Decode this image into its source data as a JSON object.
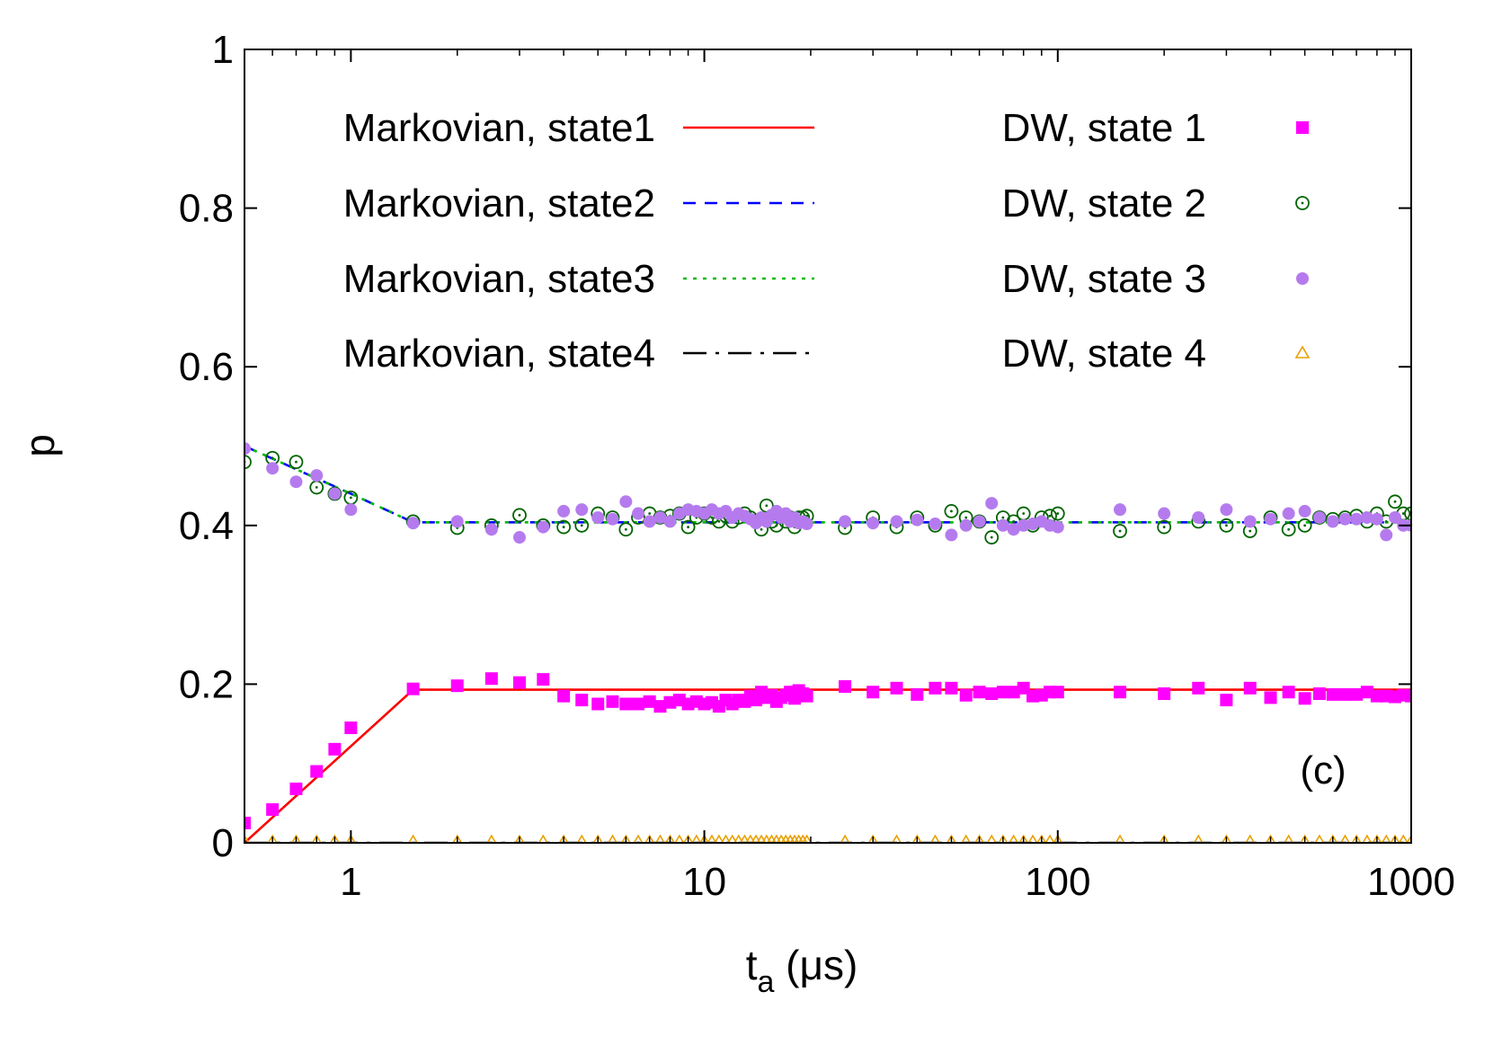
{
  "chart_data": {
    "type": "scatter",
    "panel_label": "(c)",
    "xlabel": {
      "main": "t",
      "sub": "a",
      "unit": " (μs)"
    },
    "ylabel": "p",
    "xscale": "log",
    "xlim": [
      0.5,
      1000
    ],
    "ylim": [
      0,
      1
    ],
    "x_ticks": [
      {
        "value": 1,
        "label": "1"
      },
      {
        "value": 10,
        "label": "10"
      },
      {
        "value": 100,
        "label": "100"
      },
      {
        "value": 1000,
        "label": "1000"
      }
    ],
    "y_ticks": [
      {
        "value": 0,
        "label": "0"
      },
      {
        "value": 0.2,
        "label": "0.2"
      },
      {
        "value": 0.4,
        "label": "0.4"
      },
      {
        "value": 0.6,
        "label": "0.6"
      },
      {
        "value": 0.8,
        "label": "0.8"
      },
      {
        "value": 1,
        "label": "1"
      }
    ],
    "grid": false,
    "legend_position": "top",
    "lines": [
      {
        "name": "Markovian, state1",
        "color": "#ff0000",
        "dash": "solid",
        "x": [
          0.5,
          1.5,
          1000
        ],
        "y": [
          0.0,
          0.193,
          0.193
        ]
      },
      {
        "name": "Markovian, state2",
        "color": "#0000ff",
        "dash": "dashed",
        "x": [
          0.5,
          1.0,
          1.5,
          1000
        ],
        "y": [
          0.5,
          0.44,
          0.404,
          0.404
        ]
      },
      {
        "name": "Markovian, state3",
        "color": "#00bb00",
        "dash": "dotted",
        "x": [
          0.5,
          1.0,
          1.5,
          1000
        ],
        "y": [
          0.5,
          0.44,
          0.404,
          0.404
        ]
      },
      {
        "name": "Markovian, state4",
        "color": "#000000",
        "dash": "dashdot",
        "x": [
          0.5,
          1000
        ],
        "y": [
          0.0,
          0.0
        ]
      }
    ],
    "series": [
      {
        "name": "DW, state 1",
        "marker": "filled-square",
        "color": "#ff00ff",
        "x": [
          0.5,
          0.6,
          0.7,
          0.8,
          0.9,
          1.0,
          1.5,
          2.0,
          2.5,
          3.0,
          3.5,
          4.0,
          4.5,
          5.0,
          5.5,
          6.0,
          6.5,
          7.0,
          7.5,
          8.0,
          8.5,
          9.0,
          9.5,
          10,
          10.5,
          11,
          11.5,
          12,
          12.5,
          13,
          13.5,
          14,
          14.5,
          15,
          15.5,
          16,
          16.5,
          17,
          17.5,
          18,
          18.5,
          19,
          19.5,
          25,
          30,
          35,
          40,
          45,
          50,
          55,
          60,
          65,
          70,
          75,
          80,
          85,
          90,
          95,
          100,
          150,
          200,
          250,
          300,
          350,
          400,
          450,
          500,
          550,
          600,
          650,
          700,
          750,
          800,
          850,
          900,
          950,
          1000
        ],
        "y": [
          0.025,
          0.042,
          0.068,
          0.09,
          0.118,
          0.145,
          0.194,
          0.198,
          0.207,
          0.202,
          0.206,
          0.185,
          0.18,
          0.175,
          0.178,
          0.175,
          0.175,
          0.178,
          0.172,
          0.177,
          0.18,
          0.175,
          0.178,
          0.175,
          0.177,
          0.172,
          0.18,
          0.175,
          0.18,
          0.178,
          0.185,
          0.18,
          0.19,
          0.183,
          0.186,
          0.178,
          0.183,
          0.186,
          0.19,
          0.182,
          0.192,
          0.188,
          0.185,
          0.197,
          0.19,
          0.195,
          0.187,
          0.195,
          0.195,
          0.186,
          0.19,
          0.188,
          0.19,
          0.19,
          0.195,
          0.185,
          0.186,
          0.19,
          0.19,
          0.19,
          0.188,
          0.195,
          0.18,
          0.195,
          0.183,
          0.19,
          0.182,
          0.188,
          0.187,
          0.187,
          0.187,
          0.19,
          0.185,
          0.185,
          0.184,
          0.186,
          0.185
        ]
      },
      {
        "name": "DW, state 2",
        "marker": "open-circle-dot",
        "color": "#006400",
        "x": [
          0.5,
          0.6,
          0.7,
          0.8,
          0.9,
          1.0,
          1.5,
          2.0,
          2.5,
          3.0,
          3.5,
          4.0,
          4.5,
          5.0,
          5.5,
          6.0,
          6.5,
          7.0,
          7.5,
          8.0,
          8.5,
          9.0,
          9.5,
          10,
          10.5,
          11,
          11.5,
          12,
          12.5,
          13,
          13.5,
          14,
          14.5,
          15,
          15.5,
          16,
          16.5,
          17,
          17.5,
          18,
          18.5,
          19,
          19.5,
          25,
          30,
          35,
          40,
          45,
          50,
          55,
          60,
          65,
          70,
          75,
          80,
          85,
          90,
          95,
          100,
          150,
          200,
          250,
          300,
          350,
          400,
          450,
          500,
          550,
          600,
          650,
          700,
          750,
          800,
          850,
          900,
          950,
          1000
        ],
        "y": [
          0.48,
          0.485,
          0.48,
          0.448,
          0.44,
          0.435,
          0.405,
          0.397,
          0.4,
          0.413,
          0.4,
          0.398,
          0.4,
          0.415,
          0.41,
          0.395,
          0.41,
          0.415,
          0.41,
          0.412,
          0.415,
          0.398,
          0.41,
          0.415,
          0.41,
          0.405,
          0.412,
          0.405,
          0.41,
          0.415,
          0.41,
          0.405,
          0.395,
          0.425,
          0.405,
          0.4,
          0.412,
          0.405,
          0.41,
          0.398,
          0.41,
          0.41,
          0.412,
          0.397,
          0.41,
          0.398,
          0.41,
          0.4,
          0.418,
          0.41,
          0.405,
          0.385,
          0.41,
          0.405,
          0.415,
          0.4,
          0.41,
          0.412,
          0.415,
          0.393,
          0.398,
          0.405,
          0.4,
          0.393,
          0.41,
          0.395,
          0.4,
          0.41,
          0.408,
          0.41,
          0.412,
          0.405,
          0.415,
          0.405,
          0.43,
          0.415,
          0.415
        ]
      },
      {
        "name": "DW, state 3",
        "marker": "filled-circle",
        "color": "#b57bee",
        "x": [
          0.5,
          0.6,
          0.7,
          0.8,
          0.9,
          1.0,
          1.5,
          2.0,
          2.5,
          3.0,
          3.5,
          4.0,
          4.5,
          5.0,
          5.5,
          6.0,
          6.5,
          7.0,
          7.5,
          8.0,
          8.5,
          9.0,
          9.5,
          10,
          10.5,
          11,
          11.5,
          12,
          12.5,
          13,
          13.5,
          14,
          14.5,
          15,
          15.5,
          16,
          16.5,
          17,
          17.5,
          18,
          18.5,
          19,
          19.5,
          25,
          30,
          35,
          40,
          45,
          50,
          55,
          60,
          65,
          70,
          75,
          80,
          85,
          90,
          95,
          100,
          150,
          200,
          250,
          300,
          350,
          400,
          450,
          500,
          550,
          600,
          650,
          700,
          750,
          800,
          850,
          900,
          950,
          1000
        ],
        "y": [
          0.497,
          0.472,
          0.455,
          0.463,
          0.44,
          0.42,
          0.403,
          0.405,
          0.395,
          0.385,
          0.398,
          0.418,
          0.42,
          0.41,
          0.408,
          0.43,
          0.415,
          0.405,
          0.41,
          0.405,
          0.415,
          0.42,
          0.418,
          0.415,
          0.42,
          0.415,
          0.418,
          0.41,
          0.415,
          0.412,
          0.408,
          0.403,
          0.41,
          0.405,
          0.413,
          0.418,
          0.41,
          0.415,
          0.405,
          0.41,
          0.403,
          0.405,
          0.402,
          0.405,
          0.403,
          0.405,
          0.407,
          0.402,
          0.388,
          0.4,
          0.405,
          0.428,
          0.4,
          0.395,
          0.4,
          0.402,
          0.405,
          0.4,
          0.398,
          0.42,
          0.415,
          0.41,
          0.42,
          0.405,
          0.408,
          0.415,
          0.418,
          0.41,
          0.405,
          0.408,
          0.408,
          0.41,
          0.408,
          0.388,
          0.41,
          0.4,
          0.4
        ]
      },
      {
        "name": "DW, state 4",
        "marker": "open-triangle",
        "color": "#e8a000",
        "x": [
          0.5,
          0.6,
          0.7,
          0.8,
          0.9,
          1.0,
          1.5,
          2.0,
          2.5,
          3.0,
          3.5,
          4.0,
          4.5,
          5.0,
          5.5,
          6.0,
          6.5,
          7.0,
          7.5,
          8.0,
          8.5,
          9.0,
          9.5,
          10,
          10.5,
          11,
          11.5,
          12,
          12.5,
          13,
          13.5,
          14,
          14.5,
          15,
          15.5,
          16,
          16.5,
          17,
          17.5,
          18,
          18.5,
          19,
          19.5,
          25,
          30,
          35,
          40,
          45,
          50,
          55,
          60,
          65,
          70,
          75,
          80,
          85,
          90,
          95,
          100,
          150,
          200,
          250,
          300,
          350,
          400,
          450,
          500,
          550,
          600,
          650,
          700,
          750,
          800,
          850,
          900,
          950,
          1000
        ],
        "y": [
          0.001,
          0.001,
          0.001,
          0.001,
          0.001,
          0.001,
          0.001,
          0.001,
          0.001,
          0.001,
          0.001,
          0.001,
          0.001,
          0.001,
          0.001,
          0.001,
          0.001,
          0.001,
          0.001,
          0.001,
          0.001,
          0.001,
          0.001,
          0.001,
          0.001,
          0.001,
          0.001,
          0.001,
          0.001,
          0.001,
          0.001,
          0.001,
          0.001,
          0.001,
          0.001,
          0.001,
          0.001,
          0.001,
          0.001,
          0.001,
          0.001,
          0.001,
          0.001,
          0.001,
          0.001,
          0.001,
          0.001,
          0.001,
          0.001,
          0.001,
          0.001,
          0.001,
          0.001,
          0.001,
          0.001,
          0.001,
          0.001,
          0.001,
          0.001,
          0.001,
          0.001,
          0.001,
          0.001,
          0.001,
          0.001,
          0.001,
          0.001,
          0.001,
          0.001,
          0.001,
          0.001,
          0.001,
          0.001,
          0.001,
          0.001,
          0.001,
          0.001
        ]
      }
    ]
  }
}
